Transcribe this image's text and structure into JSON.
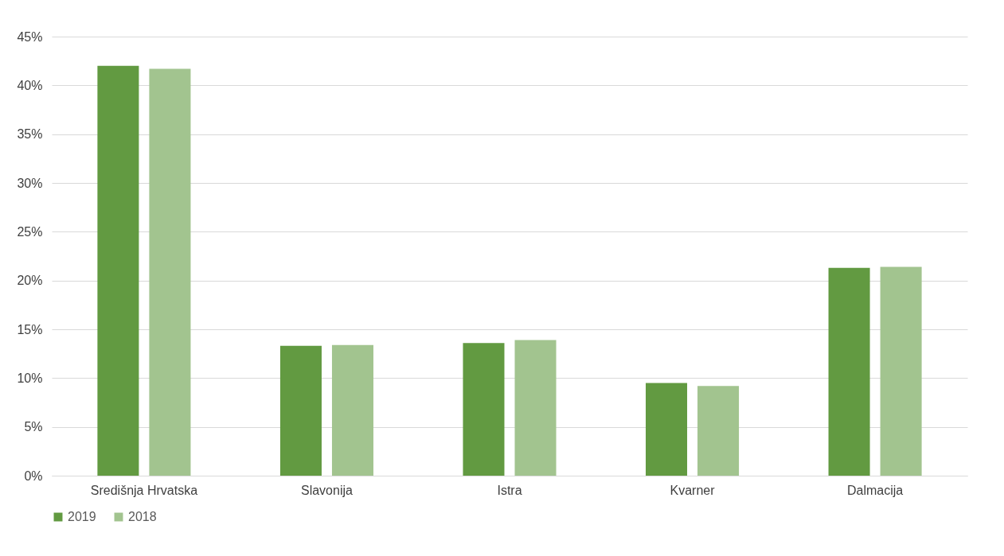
{
  "chart_data": {
    "type": "bar",
    "categories": [
      "Središnja Hrvatska",
      "Slavonija",
      "Istra",
      "Kvarner",
      "Dalmacija"
    ],
    "series": [
      {
        "name": "2019",
        "color": "#629a41",
        "values": [
          42.0,
          13.3,
          13.6,
          9.5,
          21.3
        ]
      },
      {
        "name": "2018",
        "color": "#a2c48f",
        "values": [
          41.7,
          13.4,
          13.9,
          9.2,
          21.4
        ]
      }
    ],
    "ylim": [
      0,
      45
    ],
    "yticks": [
      {
        "value": 0,
        "label": "0%"
      },
      {
        "value": 5,
        "label": "5%"
      },
      {
        "value": 10,
        "label": "10%"
      },
      {
        "value": 15,
        "label": "15%"
      },
      {
        "value": 20,
        "label": "20%"
      },
      {
        "value": 25,
        "label": "25%"
      },
      {
        "value": 30,
        "label": "30%"
      },
      {
        "value": 35,
        "label": "35%"
      },
      {
        "value": 40,
        "label": "40%"
      },
      {
        "value": 45,
        "label": "45%"
      }
    ],
    "grid": "y",
    "legend": "bottom"
  }
}
